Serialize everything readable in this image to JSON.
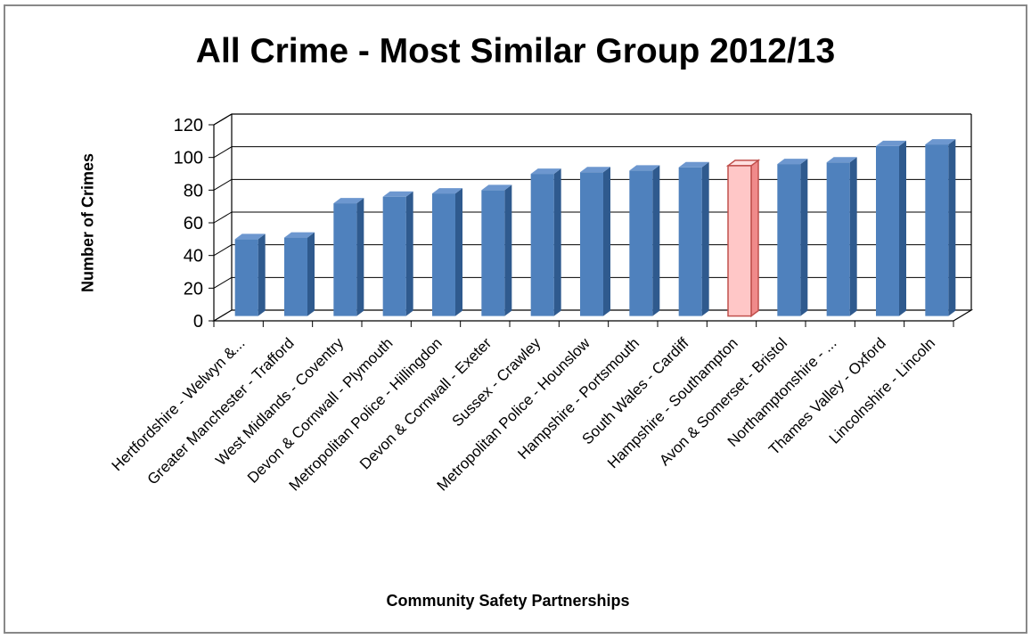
{
  "chart_data": {
    "type": "bar",
    "title": "All Crime - Most Similar Group 2012/13",
    "xlabel": "Community Safety Partnerships",
    "ylabel": "Number of Crimes",
    "ylim": [
      0,
      120
    ],
    "yticks": [
      0,
      20,
      40,
      60,
      80,
      100,
      120
    ],
    "grid": true,
    "style": "3d-column",
    "categories": [
      "Hertfordshire - Welwyn &...",
      "Greater Manchester - Trafford",
      "West Midlands - Coventry",
      "Devon & Cornwall - Plymouth",
      "Metropolitan Police - Hillingdon",
      "Devon & Cornwall - Exeter",
      "Sussex - Crawley",
      "Metropolitan Police - Hounslow",
      "Hampshire - Portsmouth",
      "South Wales - Cardiff",
      "Hampshire - Southampton",
      "Avon & Somerset - Bristol",
      "Northamptonshire - ...",
      "Thames Valley - Oxford",
      "Lincolnshire - Lincoln"
    ],
    "values": [
      47,
      48,
      69,
      73,
      75,
      77,
      87,
      88,
      89,
      91,
      92,
      93,
      94,
      104,
      105
    ],
    "highlight_category": "Hampshire - Southampton",
    "colors": {
      "bar": "#4f81bd",
      "bar_dark": "#2f5a8e",
      "highlight": "#ffc7c7",
      "highlight_edge": "#c0504d",
      "grid": "#000000"
    }
  }
}
